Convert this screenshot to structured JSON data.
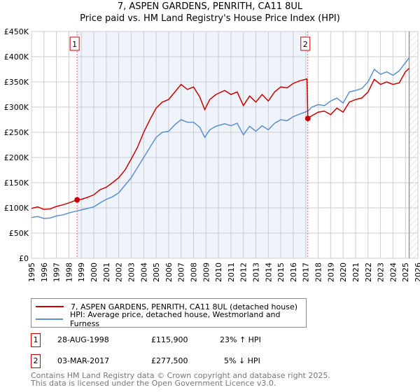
{
  "title": "7, ASPEN GARDENS, PENRITH, CA11 8UL",
  "subtitle": "Price paid vs. HM Land Registry's House Price Index (HPI)",
  "chart_data": {
    "type": "line",
    "xlim": [
      1995,
      2026
    ],
    "ylim": [
      0,
      450000
    ],
    "yticks": [
      {
        "v": 0,
        "label": "£0"
      },
      {
        "v": 50000,
        "label": "£50K"
      },
      {
        "v": 100000,
        "label": "£100K"
      },
      {
        "v": 150000,
        "label": "£150K"
      },
      {
        "v": 200000,
        "label": "£200K"
      },
      {
        "v": 250000,
        "label": "£250K"
      },
      {
        "v": 300000,
        "label": "£300K"
      },
      {
        "v": 350000,
        "label": "£350K"
      },
      {
        "v": 400000,
        "label": "£400K"
      },
      {
        "v": 450000,
        "label": "£450K"
      }
    ],
    "xticks": [
      "1995",
      "1996",
      "1997",
      "1998",
      "1999",
      "2000",
      "2001",
      "2002",
      "2003",
      "2004",
      "2005",
      "2006",
      "2007",
      "2008",
      "2009",
      "2010",
      "2011",
      "2012",
      "2013",
      "2014",
      "2015",
      "2016",
      "2017",
      "2018",
      "2019",
      "2020",
      "2021",
      "2022",
      "2023",
      "2024",
      "2025",
      "2026"
    ],
    "series": [
      {
        "name": "7, ASPEN GARDENS, PENRITH, CA11 8UL (detached house)",
        "color": "#cc0000",
        "points": [
          [
            1995,
            99000
          ],
          [
            1995.5,
            102000
          ],
          [
            1996,
            97000
          ],
          [
            1996.5,
            98000
          ],
          [
            1997,
            103000
          ],
          [
            1997.5,
            106000
          ],
          [
            1998,
            110000
          ],
          [
            1998.66,
            115900
          ],
          [
            1999,
            117000
          ],
          [
            1999.5,
            121000
          ],
          [
            2000,
            126000
          ],
          [
            2000.5,
            136000
          ],
          [
            2001,
            141000
          ],
          [
            2001.5,
            150000
          ],
          [
            2002,
            160000
          ],
          [
            2002.5,
            175000
          ],
          [
            2003,
            197000
          ],
          [
            2003.5,
            220000
          ],
          [
            2004,
            250000
          ],
          [
            2004.5,
            275000
          ],
          [
            2005,
            298000
          ],
          [
            2005.5,
            310000
          ],
          [
            2006,
            315000
          ],
          [
            2006.5,
            330000
          ],
          [
            2007,
            345000
          ],
          [
            2007.5,
            335000
          ],
          [
            2008,
            340000
          ],
          [
            2008.5,
            320000
          ],
          [
            2008.9,
            295000
          ],
          [
            2009.3,
            315000
          ],
          [
            2009.8,
            325000
          ],
          [
            2010.5,
            333000
          ],
          [
            2011,
            325000
          ],
          [
            2011.5,
            330000
          ],
          [
            2012,
            303000
          ],
          [
            2012.5,
            322000
          ],
          [
            2013,
            310000
          ],
          [
            2013.5,
            325000
          ],
          [
            2014,
            312000
          ],
          [
            2014.5,
            330000
          ],
          [
            2015,
            340000
          ],
          [
            2015.5,
            338000
          ],
          [
            2016,
            347000
          ],
          [
            2016.5,
            352000
          ],
          [
            2017.1,
            356000
          ],
          [
            2017.17,
            277500
          ],
          [
            2017.5,
            283000
          ],
          [
            2018,
            290000
          ],
          [
            2018.5,
            292000
          ],
          [
            2019,
            285000
          ],
          [
            2019.5,
            298000
          ],
          [
            2020,
            290000
          ],
          [
            2020.5,
            310000
          ],
          [
            2021,
            315000
          ],
          [
            2021.5,
            318000
          ],
          [
            2022,
            330000
          ],
          [
            2022.5,
            355000
          ],
          [
            2023,
            345000
          ],
          [
            2023.5,
            350000
          ],
          [
            2024,
            345000
          ],
          [
            2024.5,
            348000
          ],
          [
            2025,
            370000
          ],
          [
            2025.3,
            377000
          ]
        ]
      },
      {
        "name": "HPI: Average price, detached house, Westmorland and Furness",
        "color": "#5b8fd0",
        "points": [
          [
            1995,
            81000
          ],
          [
            1995.5,
            83000
          ],
          [
            1996,
            79000
          ],
          [
            1996.5,
            80000
          ],
          [
            1997,
            84000
          ],
          [
            1997.5,
            86000
          ],
          [
            1998,
            90000
          ],
          [
            1998.66,
            94000
          ],
          [
            1999,
            96000
          ],
          [
            1999.5,
            99000
          ],
          [
            2000,
            102000
          ],
          [
            2000.5,
            110000
          ],
          [
            2001,
            117000
          ],
          [
            2001.5,
            122000
          ],
          [
            2002,
            130000
          ],
          [
            2002.5,
            145000
          ],
          [
            2003,
            160000
          ],
          [
            2003.5,
            180000
          ],
          [
            2004,
            200000
          ],
          [
            2004.5,
            220000
          ],
          [
            2005,
            240000
          ],
          [
            2005.5,
            250000
          ],
          [
            2006,
            252000
          ],
          [
            2006.5,
            265000
          ],
          [
            2007,
            275000
          ],
          [
            2007.5,
            270000
          ],
          [
            2008,
            270000
          ],
          [
            2008.5,
            260000
          ],
          [
            2008.9,
            240000
          ],
          [
            2009.3,
            255000
          ],
          [
            2009.8,
            262000
          ],
          [
            2010.5,
            267000
          ],
          [
            2011,
            263000
          ],
          [
            2011.5,
            268000
          ],
          [
            2012,
            245000
          ],
          [
            2012.5,
            262000
          ],
          [
            2013,
            252000
          ],
          [
            2013.5,
            263000
          ],
          [
            2014,
            255000
          ],
          [
            2014.5,
            268000
          ],
          [
            2015,
            275000
          ],
          [
            2015.5,
            273000
          ],
          [
            2016,
            281000
          ],
          [
            2016.5,
            286000
          ],
          [
            2017.17,
            292000
          ],
          [
            2017.5,
            300000
          ],
          [
            2018,
            305000
          ],
          [
            2018.5,
            303000
          ],
          [
            2019,
            312000
          ],
          [
            2019.5,
            318000
          ],
          [
            2020,
            308000
          ],
          [
            2020.5,
            330000
          ],
          [
            2021,
            333000
          ],
          [
            2021.5,
            337000
          ],
          [
            2022,
            350000
          ],
          [
            2022.5,
            375000
          ],
          [
            2023,
            365000
          ],
          [
            2023.5,
            370000
          ],
          [
            2024,
            363000
          ],
          [
            2024.5,
            372000
          ],
          [
            2025,
            388000
          ],
          [
            2025.3,
            398000
          ]
        ]
      }
    ],
    "sales": [
      {
        "label": "1",
        "x": 1998.66,
        "y": 115900
      },
      {
        "label": "2",
        "x": 2017.17,
        "y": 277500
      }
    ],
    "shaded_range": [
      1998.66,
      2017.17
    ],
    "forecast_start": 2025.3
  },
  "legend": {
    "red": "7, ASPEN GARDENS, PENRITH, CA11 8UL (detached house)",
    "blue": "HPI: Average price, detached house, Westmorland and Furness"
  },
  "sales_table": [
    {
      "num": "1",
      "date": "28-AUG-1998",
      "price": "£115,900",
      "hpi": "23% ↑ HPI"
    },
    {
      "num": "2",
      "date": "03-MAR-2017",
      "price": "£277,500",
      "hpi": "5% ↓ HPI"
    }
  ],
  "footer": {
    "line1": "Contains HM Land Registry data © Crown copyright and database right 2025.",
    "line2": "This data is licensed under the Open Government Licence v3.0."
  }
}
